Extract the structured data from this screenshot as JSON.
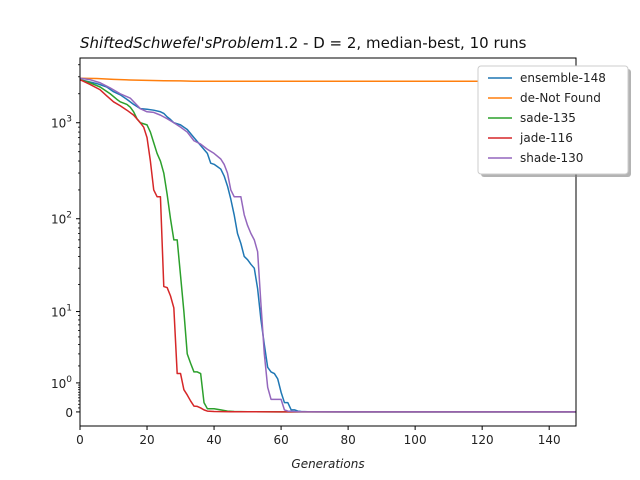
{
  "chart_data": {
    "type": "line",
    "title_italic": "ShiftedSchwefel'sProblem",
    "title_rest": "1.2  - D = 2, median-best, 10 runs",
    "xlabel": "Generations",
    "ylabel": "",
    "xlim": [
      0,
      148
    ],
    "yscale": "symlog",
    "symlog_linthresh": 1,
    "ylim": [
      -0.4,
      4700
    ],
    "x_ticks": [
      0,
      20,
      40,
      60,
      80,
      100,
      120,
      140
    ],
    "y_ticks": [
      {
        "value": 0,
        "label": "0"
      },
      {
        "value": 1,
        "label": "10",
        "exp": "0"
      },
      {
        "value": 10,
        "label": "10",
        "exp": "1"
      },
      {
        "value": 100,
        "label": "10",
        "exp": "2"
      },
      {
        "value": 1000,
        "label": "10",
        "exp": "3"
      }
    ],
    "legend_position": "top-right",
    "grid": false,
    "series": [
      {
        "name": "ensemble-148",
        "color": "#1f77b4",
        "points": [
          [
            0,
            2800
          ],
          [
            2,
            2700
          ],
          [
            5,
            2550
          ],
          [
            8,
            2350
          ],
          [
            10,
            2100
          ],
          [
            12,
            1950
          ],
          [
            14,
            1750
          ],
          [
            16,
            1550
          ],
          [
            18,
            1400
          ],
          [
            20,
            1380
          ],
          [
            22,
            1350
          ],
          [
            24,
            1300
          ],
          [
            25,
            1250
          ],
          [
            26,
            1150
          ],
          [
            27,
            1080
          ],
          [
            28,
            1000
          ],
          [
            30,
            950
          ],
          [
            32,
            850
          ],
          [
            34,
            700
          ],
          [
            36,
            580
          ],
          [
            38,
            480
          ],
          [
            39,
            380
          ],
          [
            40,
            370
          ],
          [
            41,
            350
          ],
          [
            42,
            330
          ],
          [
            43,
            280
          ],
          [
            44,
            220
          ],
          [
            45,
            160
          ],
          [
            46,
            110
          ],
          [
            47,
            70
          ],
          [
            48,
            55
          ],
          [
            49,
            40
          ],
          [
            50,
            37
          ],
          [
            51,
            33
          ],
          [
            52,
            30
          ],
          [
            53,
            18
          ],
          [
            54,
            8
          ],
          [
            55,
            4
          ],
          [
            56,
            1.9
          ],
          [
            57,
            1.6
          ],
          [
            58,
            1.5
          ],
          [
            59,
            1.2
          ],
          [
            60,
            0.6
          ],
          [
            61,
            0.25
          ],
          [
            62,
            0.25
          ],
          [
            63,
            0.05
          ],
          [
            64,
            0.05
          ],
          [
            65,
            0.02
          ],
          [
            66,
            0.01
          ],
          [
            68,
            0.005
          ],
          [
            80,
            0.002
          ],
          [
            148,
            0.001
          ]
        ]
      },
      {
        "name": "de-Not Found",
        "color": "#ff7f0e",
        "points": [
          [
            0,
            2900
          ],
          [
            5,
            2880
          ],
          [
            10,
            2820
          ],
          [
            15,
            2780
          ],
          [
            20,
            2750
          ],
          [
            25,
            2730
          ],
          [
            30,
            2720
          ],
          [
            34,
            2700
          ],
          [
            40,
            2700
          ],
          [
            60,
            2700
          ],
          [
            80,
            2700
          ],
          [
            100,
            2700
          ],
          [
            120,
            2700
          ],
          [
            148,
            2700
          ]
        ]
      },
      {
        "name": "sade-135",
        "color": "#2ca02c",
        "points": [
          [
            0,
            2800
          ],
          [
            3,
            2600
          ],
          [
            6,
            2350
          ],
          [
            9,
            2000
          ],
          [
            11,
            1750
          ],
          [
            12,
            1650
          ],
          [
            14,
            1550
          ],
          [
            15,
            1450
          ],
          [
            16,
            1300
          ],
          [
            17,
            1100
          ],
          [
            18,
            1000
          ],
          [
            20,
            950
          ],
          [
            21,
            800
          ],
          [
            22,
            620
          ],
          [
            23,
            480
          ],
          [
            24,
            400
          ],
          [
            25,
            300
          ],
          [
            26,
            180
          ],
          [
            27,
            100
          ],
          [
            28,
            60
          ],
          [
            29,
            60
          ],
          [
            30,
            25
          ],
          [
            31,
            10
          ],
          [
            32,
            3
          ],
          [
            33,
            2.2
          ],
          [
            34,
            1.6
          ],
          [
            35,
            1.6
          ],
          [
            36,
            1.5
          ],
          [
            37,
            0.25
          ],
          [
            38,
            0.08
          ],
          [
            40,
            0.08
          ],
          [
            42,
            0.05
          ],
          [
            44,
            0.02
          ],
          [
            46,
            0.01
          ],
          [
            50,
            0.005
          ],
          [
            60,
            0.002
          ],
          [
            148,
            0.001
          ]
        ]
      },
      {
        "name": "jade-116",
        "color": "#d62728",
        "points": [
          [
            0,
            2800
          ],
          [
            3,
            2500
          ],
          [
            6,
            2200
          ],
          [
            8,
            1900
          ],
          [
            10,
            1650
          ],
          [
            12,
            1500
          ],
          [
            14,
            1350
          ],
          [
            16,
            1200
          ],
          [
            18,
            1000
          ],
          [
            19,
            900
          ],
          [
            20,
            700
          ],
          [
            21,
            400
          ],
          [
            22,
            200
          ],
          [
            23,
            170
          ],
          [
            24,
            170
          ],
          [
            25,
            19
          ],
          [
            26,
            18.5
          ],
          [
            27,
            15
          ],
          [
            28,
            11
          ],
          [
            29,
            1.5
          ],
          [
            30,
            1.5
          ],
          [
            31,
            0.7
          ],
          [
            32,
            0.5
          ],
          [
            33,
            0.3
          ],
          [
            34,
            0.15
          ],
          [
            35,
            0.14
          ],
          [
            36,
            0.1
          ],
          [
            37,
            0.05
          ],
          [
            38,
            0.02
          ],
          [
            40,
            0.01
          ],
          [
            45,
            0.005
          ],
          [
            60,
            0.002
          ],
          [
            148,
            0.001
          ]
        ]
      },
      {
        "name": "shade-130",
        "color": "#9467bd",
        "points": [
          [
            0,
            2900
          ],
          [
            3,
            2800
          ],
          [
            6,
            2600
          ],
          [
            9,
            2300
          ],
          [
            12,
            2000
          ],
          [
            15,
            1800
          ],
          [
            18,
            1400
          ],
          [
            20,
            1300
          ],
          [
            22,
            1280
          ],
          [
            24,
            1200
          ],
          [
            26,
            1100
          ],
          [
            28,
            1000
          ],
          [
            30,
            900
          ],
          [
            32,
            800
          ],
          [
            34,
            650
          ],
          [
            36,
            600
          ],
          [
            38,
            530
          ],
          [
            40,
            480
          ],
          [
            42,
            420
          ],
          [
            43,
            370
          ],
          [
            44,
            300
          ],
          [
            45,
            200
          ],
          [
            46,
            170
          ],
          [
            48,
            170
          ],
          [
            49,
            110
          ],
          [
            50,
            85
          ],
          [
            51,
            70
          ],
          [
            52,
            60
          ],
          [
            53,
            45
          ],
          [
            54,
            12
          ],
          [
            55,
            3
          ],
          [
            56,
            0.8
          ],
          [
            57,
            0.35
          ],
          [
            58,
            0.35
          ],
          [
            60,
            0.35
          ],
          [
            61,
            0.05
          ],
          [
            62,
            0.02
          ],
          [
            64,
            0.01
          ],
          [
            66,
            0.005
          ],
          [
            80,
            0.002
          ],
          [
            148,
            0.001
          ]
        ]
      }
    ]
  }
}
